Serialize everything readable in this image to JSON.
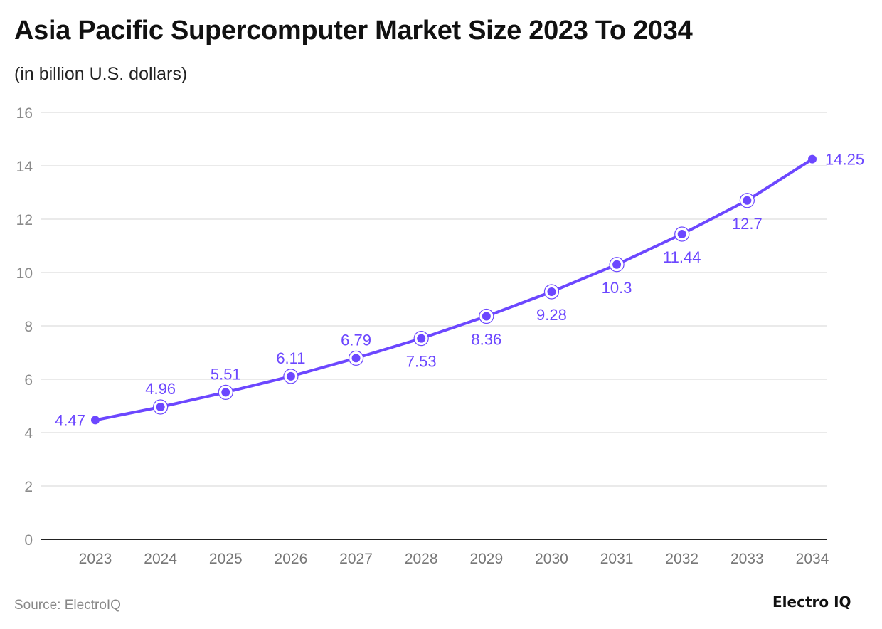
{
  "chart_data": {
    "type": "line",
    "title": "Asia Pacific Supercomputer Market Size 2023 To 2034",
    "subtitle": "(in billion U.S. dollars)",
    "categories": [
      "2023",
      "2024",
      "2025",
      "2026",
      "2027",
      "2028",
      "2029",
      "2030",
      "2031",
      "2032",
      "2033",
      "2034"
    ],
    "values": [
      4.47,
      4.96,
      5.51,
      6.11,
      6.79,
      7.53,
      8.36,
      9.28,
      10.3,
      11.44,
      12.7,
      14.25
    ],
    "data_labels": [
      "4.47",
      "4.96",
      "5.51",
      "6.11",
      "6.79",
      "7.53",
      "8.36",
      "9.28",
      "10.3",
      "11.44",
      "12.7",
      "14.25"
    ],
    "yticks": [
      "0",
      "2",
      "4",
      "6",
      "8",
      "10",
      "12",
      "14",
      "16"
    ],
    "ylim": [
      0,
      16
    ],
    "grid": true,
    "xlabel": "",
    "ylabel": "",
    "colors": {
      "line": "#6c47ff",
      "grid": "#e3e3e3",
      "axis": "#222222",
      "tick_text": "#8a8a8a"
    }
  },
  "footer": {
    "source": "Source: ElectroIQ",
    "logo": "Electro IQ"
  }
}
